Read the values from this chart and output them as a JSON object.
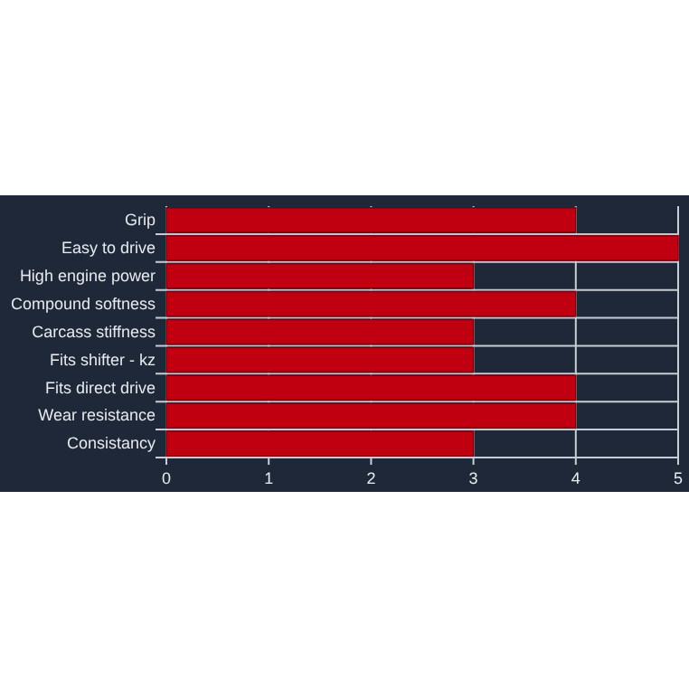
{
  "chart_data": {
    "type": "bar",
    "orientation": "horizontal",
    "categories": [
      "Grip",
      "Easy to drive",
      "High engine power",
      "Compound softness",
      "Carcass stiffness",
      "Fits shifter - kz",
      "Fits direct drive",
      "Wear resistance",
      "Consistancy"
    ],
    "values": [
      4,
      5,
      3,
      4,
      3,
      3,
      4,
      4,
      3
    ],
    "color": "#c00010",
    "xlim": [
      0,
      5
    ],
    "xticks": [
      0,
      1,
      2,
      3,
      4,
      5
    ],
    "grid": true
  }
}
